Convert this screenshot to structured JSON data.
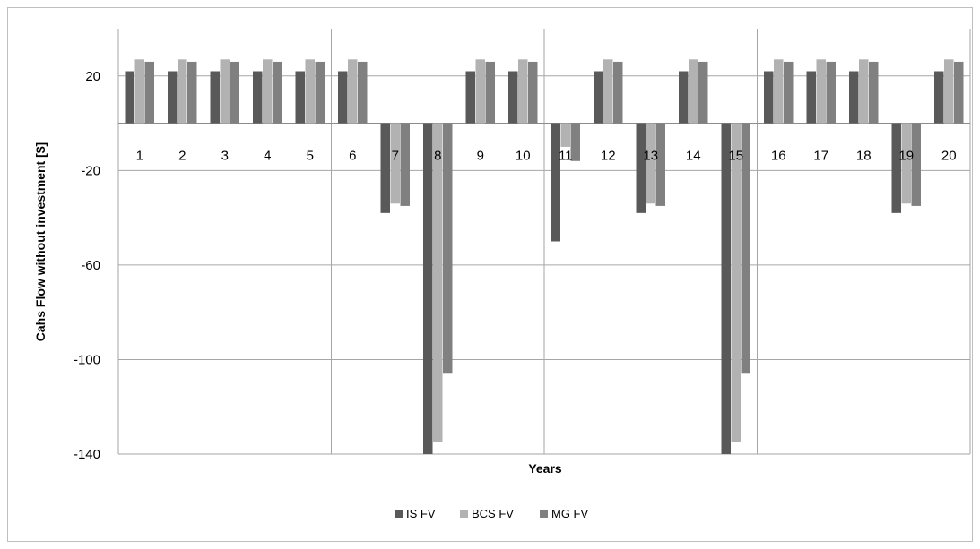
{
  "chart_data": {
    "type": "bar",
    "title": "",
    "xlabel": "Years",
    "ylabel": "Cahs Flow without investment [$]",
    "categories": [
      "1",
      "2",
      "3",
      "4",
      "5",
      "6",
      "7",
      "8",
      "9",
      "10",
      "11",
      "12",
      "13",
      "14",
      "15",
      "16",
      "17",
      "18",
      "19",
      "20"
    ],
    "ylim": [
      -140,
      40
    ],
    "yticks": [
      20,
      -20,
      -60,
      -100,
      -140
    ],
    "grid": true,
    "legend_position": "bottom",
    "series": [
      {
        "name": "IS FV",
        "color": "#595959",
        "values": [
          22,
          22,
          22,
          22,
          22,
          22,
          -38,
          -140,
          22,
          22,
          -50,
          22,
          -38,
          22,
          -140,
          22,
          22,
          22,
          -38,
          22
        ]
      },
      {
        "name": "BCS FV",
        "color": "#b2b2b2",
        "values": [
          27,
          27,
          27,
          27,
          27,
          27,
          -34,
          -135,
          27,
          27,
          -10,
          27,
          -34,
          27,
          -135,
          27,
          27,
          27,
          -34,
          27
        ]
      },
      {
        "name": "MG FV",
        "color": "#808080",
        "values": [
          26,
          26,
          26,
          26,
          26,
          26,
          -35,
          -106,
          26,
          26,
          -16,
          26,
          -35,
          26,
          -106,
          26,
          26,
          26,
          -35,
          26
        ]
      }
    ]
  }
}
